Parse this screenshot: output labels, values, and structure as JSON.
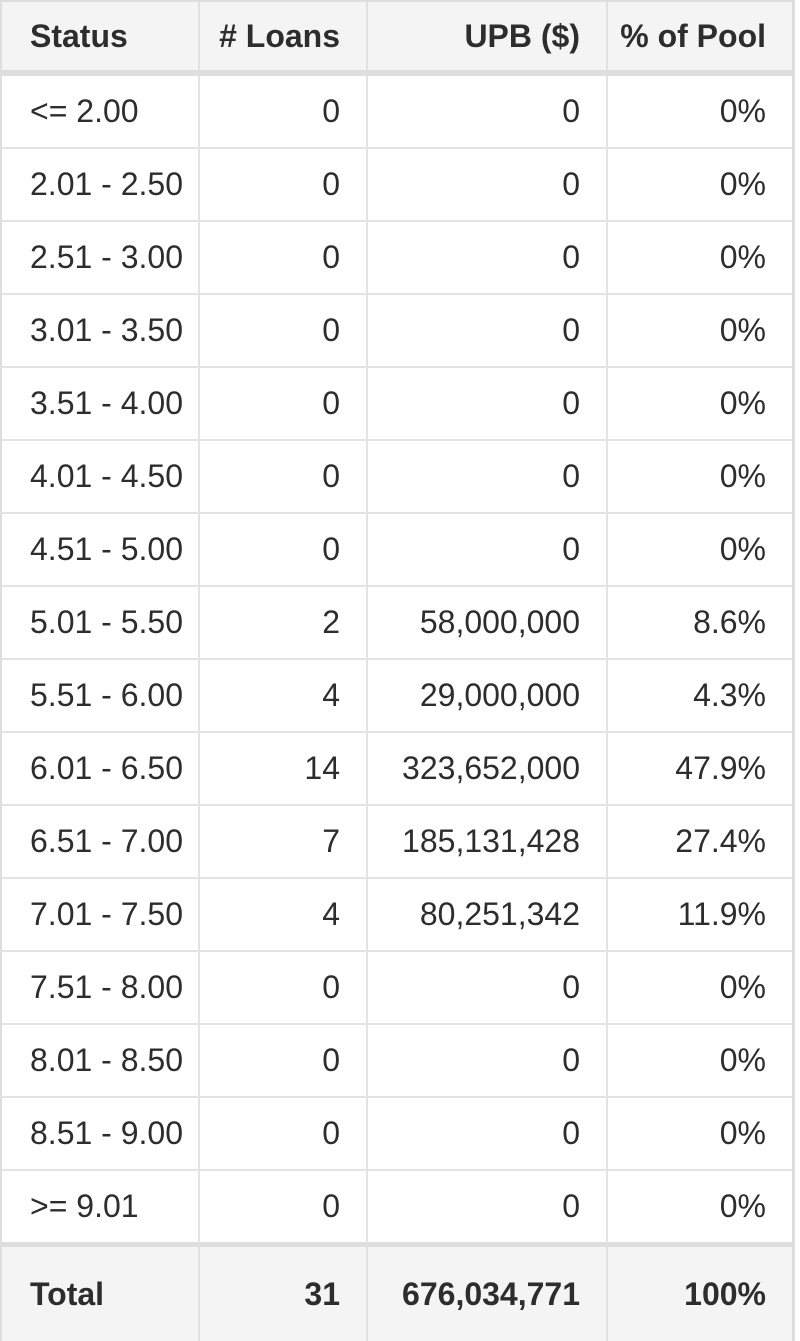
{
  "columns": [
    {
      "label": "Status"
    },
    {
      "label": "# Loans"
    },
    {
      "label": "UPB ($)"
    },
    {
      "label": "% of Pool"
    }
  ],
  "rows": [
    {
      "c0": "<= 2.00",
      "c1": "0",
      "c2": "0",
      "c3": "0%"
    },
    {
      "c0": "2.01 - 2.50",
      "c1": "0",
      "c2": "0",
      "c3": "0%"
    },
    {
      "c0": "2.51 - 3.00",
      "c1": "0",
      "c2": "0",
      "c3": "0%"
    },
    {
      "c0": "3.01 - 3.50",
      "c1": "0",
      "c2": "0",
      "c3": "0%"
    },
    {
      "c0": "3.51 - 4.00",
      "c1": "0",
      "c2": "0",
      "c3": "0%"
    },
    {
      "c0": "4.01 - 4.50",
      "c1": "0",
      "c2": "0",
      "c3": "0%"
    },
    {
      "c0": "4.51 - 5.00",
      "c1": "0",
      "c2": "0",
      "c3": "0%"
    },
    {
      "c0": "5.01 - 5.50",
      "c1": "2",
      "c2": "58,000,000",
      "c3": "8.6%"
    },
    {
      "c0": "5.51 - 6.00",
      "c1": "4",
      "c2": "29,000,000",
      "c3": "4.3%"
    },
    {
      "c0": "6.01 - 6.50",
      "c1": "14",
      "c2": "323,652,000",
      "c3": "47.9%"
    },
    {
      "c0": "6.51 - 7.00",
      "c1": "7",
      "c2": "185,131,428",
      "c3": "27.4%"
    },
    {
      "c0": "7.01 - 7.50",
      "c1": "4",
      "c2": "80,251,342",
      "c3": "11.9%"
    },
    {
      "c0": "7.51 - 8.00",
      "c1": "0",
      "c2": "0",
      "c3": "0%"
    },
    {
      "c0": "8.01 - 8.50",
      "c1": "0",
      "c2": "0",
      "c3": "0%"
    },
    {
      "c0": "8.51 - 9.00",
      "c1": "0",
      "c2": "0",
      "c3": "0%"
    },
    {
      "c0": ">= 9.01",
      "c1": "0",
      "c2": "0",
      "c3": "0%"
    }
  ],
  "total_row": {
    "c0": "Total",
    "c1": "31",
    "c2": "676,034,771",
    "c3": "100%"
  },
  "colors": {
    "header_bg": "#f4f4f4",
    "row_bg": "#ffffff",
    "border_thick": "#dedede",
    "border_thin": "#e3e3e3",
    "text": "#2d2d2d",
    "page_bg": "#ffffff"
  },
  "chart_data": {
    "type": "table",
    "title": "",
    "columns": [
      "Status",
      "# Loans",
      "UPB ($)",
      "% of Pool"
    ],
    "rows": [
      [
        "<= 2.00",
        0,
        0,
        "0%"
      ],
      [
        "2.01 - 2.50",
        0,
        0,
        "0%"
      ],
      [
        "2.51 - 3.00",
        0,
        0,
        "0%"
      ],
      [
        "3.01 - 3.50",
        0,
        0,
        "0%"
      ],
      [
        "3.51 - 4.00",
        0,
        0,
        "0%"
      ],
      [
        "4.01 - 4.50",
        0,
        0,
        "0%"
      ],
      [
        "4.51 - 5.00",
        0,
        0,
        "0%"
      ],
      [
        "5.01 - 5.50",
        2,
        58000000,
        "8.6%"
      ],
      [
        "5.51 - 6.00",
        4,
        29000000,
        "4.3%"
      ],
      [
        "6.01 - 6.50",
        14,
        323652000,
        "47.9%"
      ],
      [
        "6.51 - 7.00",
        7,
        185131428,
        "27.4%"
      ],
      [
        "7.01 - 7.50",
        4,
        80251342,
        "11.9%"
      ],
      [
        "7.51 - 8.00",
        0,
        0,
        "0%"
      ],
      [
        "8.01 - 8.50",
        0,
        0,
        "0%"
      ],
      [
        "8.51 - 9.00",
        0,
        0,
        "0%"
      ],
      [
        ">= 9.01",
        0,
        0,
        "0%"
      ]
    ],
    "total": [
      "Total",
      31,
      676034771,
      "100%"
    ],
    "layout_hints": {
      "numeric_columns_alignment": "right",
      "status_column_alignment": "left",
      "grid": true
    }
  }
}
